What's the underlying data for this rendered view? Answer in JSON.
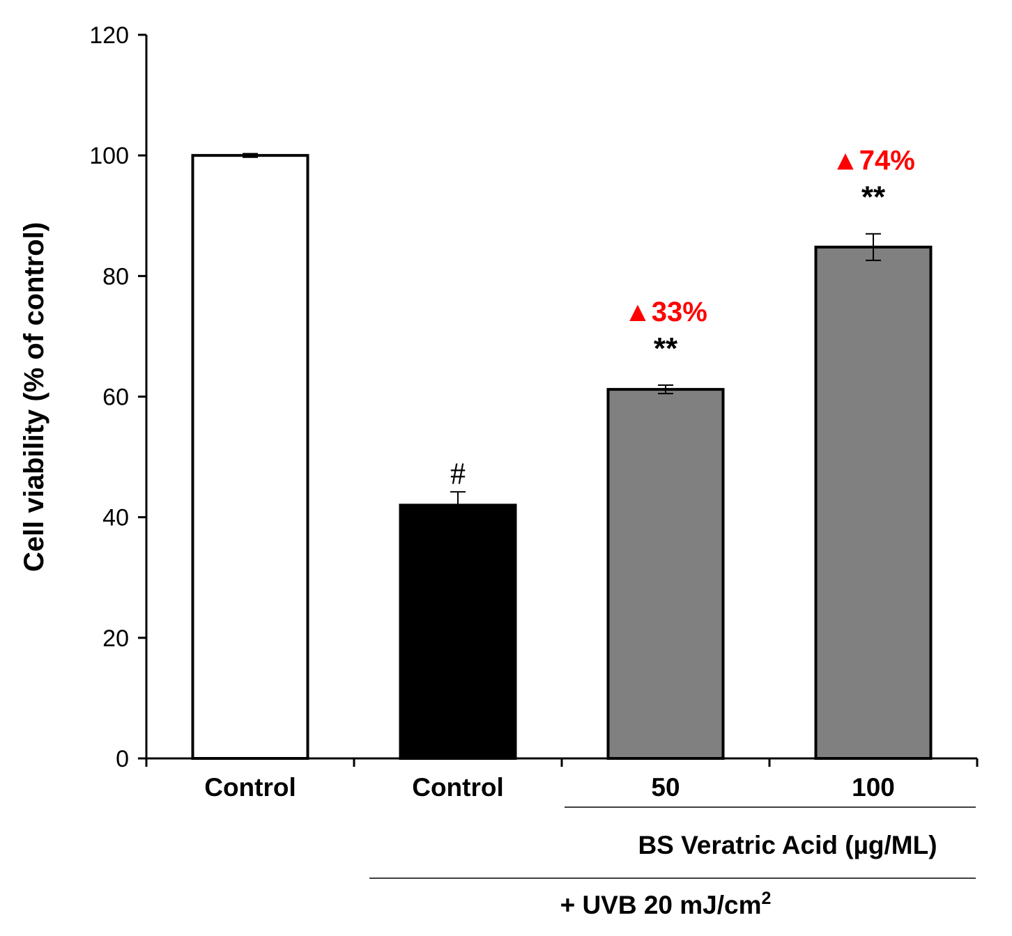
{
  "chart_data": {
    "type": "bar",
    "ylabel": "Cell viability (% of control)",
    "ylim": [
      0,
      120
    ],
    "yticks": [
      0,
      20,
      40,
      60,
      80,
      100,
      120
    ],
    "categories": [
      "Control",
      "Control",
      "50",
      "100"
    ],
    "values": [
      100,
      42,
      61.2,
      84.8
    ],
    "errors": [
      0.3,
      2.2,
      0.7,
      2.2
    ],
    "bar_colors": [
      "#ffffff",
      "#000000",
      "#808080",
      "#808080"
    ],
    "markers": [
      "",
      "#",
      "**",
      "**"
    ],
    "increase_labels": [
      "",
      "",
      "▲33%",
      "▲74%"
    ],
    "increase_color": "#ff0000",
    "group_labels": {
      "treatment": "BS Veratric Acid (µg/ML)",
      "uvb_prefix": "+ UVB 20 mJ/cm",
      "uvb_superscript": "2"
    }
  }
}
